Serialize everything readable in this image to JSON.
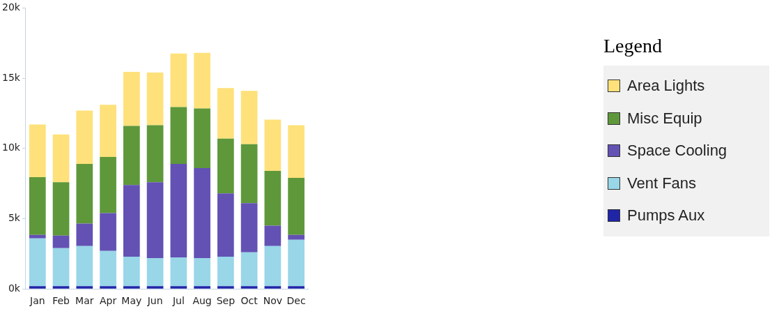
{
  "chart_data": {
    "type": "bar",
    "stacked": true,
    "legend": "right",
    "legend_title": "Legend",
    "categories": [
      "Jan",
      "Feb",
      "Mar",
      "Apr",
      "May",
      "Jun",
      "Jul",
      "Aug",
      "Sep",
      "Oct",
      "Nov",
      "Dec"
    ],
    "ylim": [
      0,
      20000
    ],
    "yticks": [
      {
        "value": 0,
        "label": "0k"
      },
      {
        "value": 5000,
        "label": "5k"
      },
      {
        "value": 10000,
        "label": "10k"
      },
      {
        "value": 15000,
        "label": "15k"
      },
      {
        "value": 20000,
        "label": "20k"
      }
    ],
    "series": [
      {
        "name": "Pumps Aux",
        "color": "#2025a8",
        "values": [
          200,
          200,
          200,
          200,
          200,
          200,
          200,
          200,
          200,
          200,
          200,
          200
        ]
      },
      {
        "name": "Vent Fans",
        "color": "#98d6e8",
        "values": [
          3400,
          2700,
          2850,
          2500,
          2100,
          2000,
          2050,
          2000,
          2100,
          2400,
          2850,
          3300
        ]
      },
      {
        "name": "Space Cooling",
        "color": "#6351b4",
        "values": [
          250,
          900,
          1600,
          2700,
          5100,
          5400,
          6650,
          6400,
          4500,
          3500,
          1450,
          350
        ]
      },
      {
        "name": "Misc Equip",
        "color": "#5e983b",
        "values": [
          4100,
          3800,
          4250,
          4000,
          4200,
          4050,
          4050,
          4250,
          3900,
          4200,
          3900,
          4050
        ]
      },
      {
        "name": "Area Lights",
        "color": "#fee17a",
        "values": [
          3750,
          3400,
          3800,
          3700,
          3850,
          3750,
          3800,
          3950,
          3600,
          3800,
          3650,
          3750
        ]
      }
    ]
  }
}
